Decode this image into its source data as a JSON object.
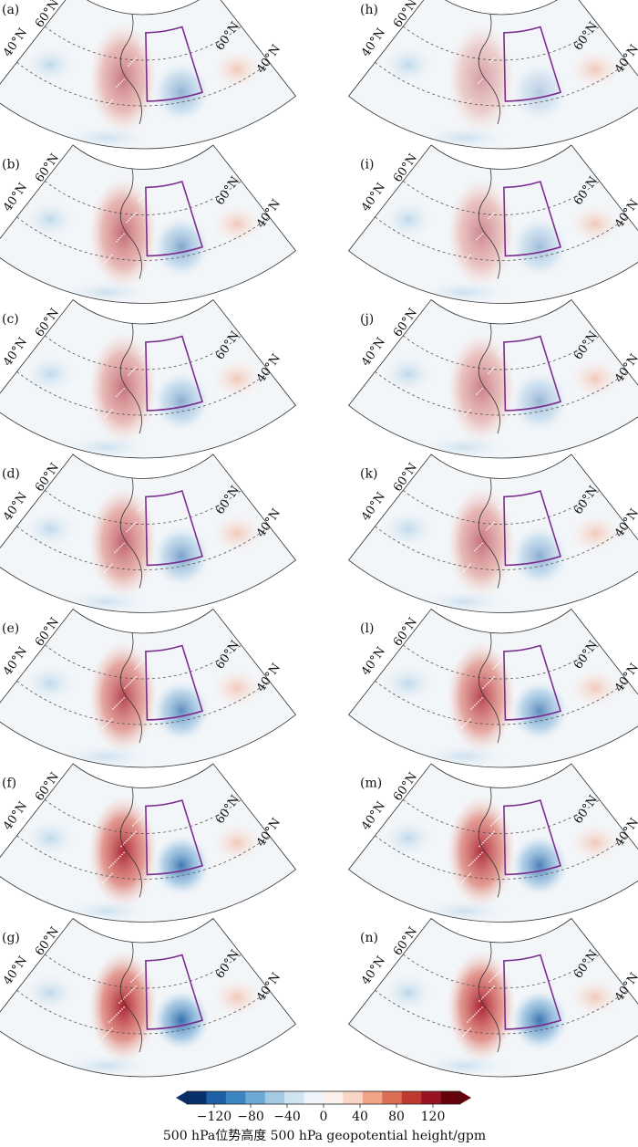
{
  "panels": [
    {
      "id": "a",
      "label": "(a)",
      "strength": 0.35,
      "col": 0,
      "row": 0
    },
    {
      "id": "b",
      "label": "(b)",
      "strength": 0.45,
      "col": 0,
      "row": 1
    },
    {
      "id": "c",
      "label": "(c)",
      "strength": 0.4,
      "col": 0,
      "row": 2
    },
    {
      "id": "d",
      "label": "(d)",
      "strength": 0.5,
      "col": 0,
      "row": 3
    },
    {
      "id": "e",
      "label": "(e)",
      "strength": 0.7,
      "col": 0,
      "row": 4
    },
    {
      "id": "f",
      "label": "(f)",
      "strength": 0.9,
      "col": 0,
      "row": 5
    },
    {
      "id": "g",
      "label": "(g)",
      "strength": 1.0,
      "col": 0,
      "row": 6
    },
    {
      "id": "h",
      "label": "(h)",
      "strength": 0.1,
      "col": 1,
      "row": 0
    },
    {
      "id": "i",
      "label": "(i)",
      "strength": 0.25,
      "col": 1,
      "row": 1
    },
    {
      "id": "j",
      "label": "(j)",
      "strength": 0.3,
      "col": 1,
      "row": 2
    },
    {
      "id": "k",
      "label": "(k)",
      "strength": 0.4,
      "col": 1,
      "row": 3
    },
    {
      "id": "l",
      "label": "(l)",
      "strength": 0.7,
      "col": 1,
      "row": 4
    },
    {
      "id": "m",
      "label": "(m)",
      "strength": 0.85,
      "col": 1,
      "row": 5
    },
    {
      "id": "n",
      "label": "(n)",
      "strength": 0.95,
      "col": 1,
      "row": 6
    }
  ],
  "lat_labels": {
    "north": "60°N",
    "south": "40°N"
  },
  "colorbar": {
    "ticks": [
      "−120",
      "−80",
      "−40",
      "0",
      "40",
      "80",
      "120"
    ],
    "title": "500 hPa位势高度 500 hPa geopotential height/gpm",
    "colors": [
      "#08306b",
      "#1f5fa6",
      "#3d85c0",
      "#6ea9d4",
      "#a3c9e3",
      "#d0e3f1",
      "#eef4f9",
      "#fbf0ea",
      "#f8d5c4",
      "#f1a487",
      "#dc6e56",
      "#c0392f",
      "#981324",
      "#67000d"
    ]
  },
  "colors": {
    "region_box": "#7a2e8e",
    "grid_line": "#555555",
    "coast": "#333333"
  }
}
